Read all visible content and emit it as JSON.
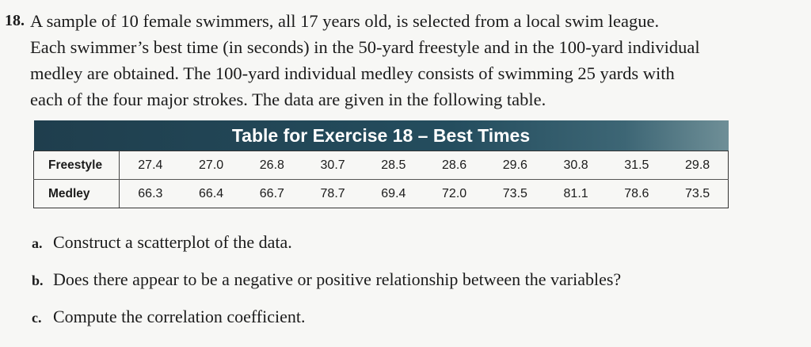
{
  "problem": {
    "number": "18.",
    "lines": [
      "A sample of 10 female swimmers, all 17 years old, is selected from a local swim league.",
      "Each swimmer’s best time (in seconds) in the 50-yard freestyle and in the 100-yard individual",
      "medley are obtained. The 100-yard individual medley consists of swimming 25 yards with",
      "each of the four major strokes. The data are given in the following table."
    ]
  },
  "table": {
    "title": "Table for Exercise 18 – Best Times",
    "rows": [
      {
        "label": "Freestyle",
        "values": [
          "27.4",
          "27.0",
          "26.8",
          "30.7",
          "28.5",
          "28.6",
          "29.6",
          "30.8",
          "31.5",
          "29.8"
        ]
      },
      {
        "label": "Medley",
        "values": [
          "66.3",
          "66.4",
          "66.7",
          "78.7",
          "69.4",
          "72.0",
          "73.5",
          "81.1",
          "78.6",
          "73.5"
        ]
      }
    ]
  },
  "questions": [
    {
      "letter": "a.",
      "text": "Construct a scatterplot of the data."
    },
    {
      "letter": "b.",
      "text": "Does there appear to be a negative or positive relationship between the variables?"
    },
    {
      "letter": "c.",
      "text": "Compute the correlation coefficient."
    }
  ]
}
